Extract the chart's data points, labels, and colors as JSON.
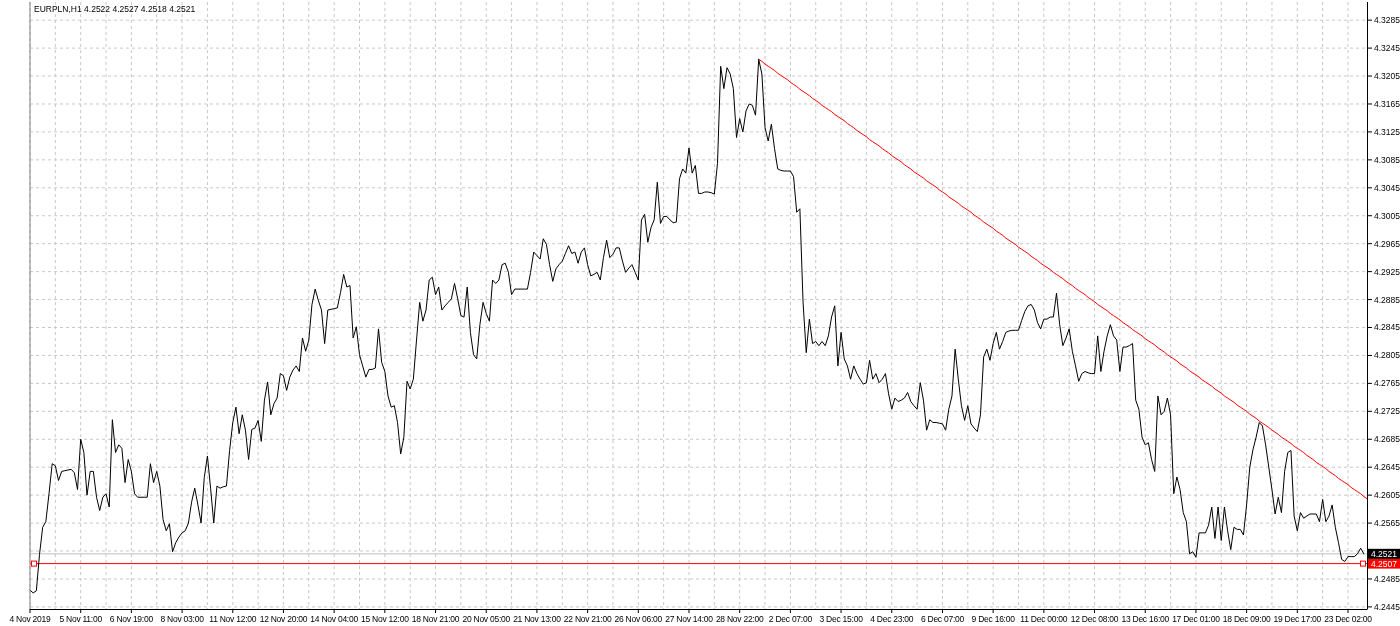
{
  "chart_data": {
    "type": "line",
    "title": "EURPLN,H1 4.2522 4.2527 4.2518 4.2521",
    "categories": [
      "4 Nov 2019",
      null,
      null,
      null,
      null,
      null,
      null,
      null,
      null,
      null,
      null,
      null,
      null,
      null,
      null,
      null,
      "5 Nov 11:00",
      null,
      null,
      null,
      null,
      null,
      null,
      null,
      null,
      null,
      null,
      null,
      null,
      null,
      null,
      null,
      "6 Nov 19:00",
      null,
      null,
      null,
      null,
      null,
      null,
      null,
      null,
      null,
      null,
      null,
      null,
      null,
      null,
      null,
      "8 Nov 03:00",
      null,
      null,
      null,
      null,
      null,
      null,
      null,
      null,
      null,
      null,
      null,
      null,
      null,
      null,
      null,
      "11 Nov 12:00",
      null,
      null,
      null,
      null,
      null,
      null,
      null,
      null,
      null,
      null,
      null,
      null,
      null,
      null,
      null,
      "12 Nov 20:00",
      null,
      null,
      null,
      null,
      null,
      null,
      null,
      null,
      null,
      null,
      null,
      null,
      null,
      null,
      null,
      "14 Nov 04:00",
      null,
      null,
      null,
      null,
      null,
      null,
      null,
      null,
      null,
      null,
      null,
      null,
      null,
      null,
      null,
      "15 Nov 12:00",
      null,
      null,
      null,
      null,
      null,
      null,
      null,
      null,
      null,
      null,
      null,
      null,
      null,
      null,
      null,
      "18 Nov 21:00",
      null,
      null,
      null,
      null,
      null,
      null,
      null,
      null,
      null,
      null,
      null,
      null,
      null,
      null,
      null,
      "20 Nov 05:00",
      null,
      null,
      null,
      null,
      null,
      null,
      null,
      null,
      null,
      null,
      null,
      null,
      null,
      null,
      null,
      "21 Nov 13:00",
      null,
      null,
      null,
      null,
      null,
      null,
      null,
      null,
      null,
      null,
      null,
      null,
      null,
      null,
      null,
      "22 Nov 21:00",
      null,
      null,
      null,
      null,
      null,
      null,
      null,
      null,
      null,
      null,
      null,
      null,
      null,
      null,
      null,
      "26 Nov 06:00",
      null,
      null,
      null,
      null,
      null,
      null,
      null,
      null,
      null,
      null,
      null,
      null,
      null,
      null,
      null,
      "27 Nov 14:00",
      null,
      null,
      null,
      null,
      null,
      null,
      null,
      null,
      null,
      null,
      null,
      null,
      null,
      null,
      null,
      "28 Nov 22:00",
      null,
      null,
      null,
      null,
      null,
      null,
      null,
      null,
      null,
      null,
      null,
      null,
      null,
      null,
      null,
      "2 Dec 07:00",
      null,
      null,
      null,
      null,
      null,
      null,
      null,
      null,
      null,
      null,
      null,
      null,
      null,
      null,
      null,
      "3 Dec 15:00",
      null,
      null,
      null,
      null,
      null,
      null,
      null,
      null,
      null,
      null,
      null,
      null,
      null,
      null,
      null,
      "4 Dec 23:00",
      null,
      null,
      null,
      null,
      null,
      null,
      null,
      null,
      null,
      null,
      null,
      null,
      null,
      null,
      null,
      "6 Dec 07:00",
      null,
      null,
      null,
      null,
      null,
      null,
      null,
      null,
      null,
      null,
      null,
      null,
      null,
      null,
      null,
      "9 Dec 16:00",
      null,
      null,
      null,
      null,
      null,
      null,
      null,
      null,
      null,
      null,
      null,
      null,
      null,
      null,
      null,
      "11 Dec 00:00",
      null,
      null,
      null,
      null,
      null,
      null,
      null,
      null,
      null,
      null,
      null,
      null,
      null,
      null,
      null,
      "12 Dec 08:00",
      null,
      null,
      null,
      null,
      null,
      null,
      null,
      null,
      null,
      null,
      null,
      null,
      null,
      null,
      null,
      "13 Dec 16:00",
      null,
      null,
      null,
      null,
      null,
      null,
      null,
      null,
      null,
      null,
      null,
      null,
      null,
      null,
      null,
      "17 Dec 01:00",
      null,
      null,
      null,
      null,
      null,
      null,
      null,
      null,
      null,
      null,
      null,
      null,
      null,
      null,
      null,
      "18 Dec 09:00",
      null,
      null,
      null,
      null,
      null,
      null,
      null,
      null,
      null,
      null,
      null,
      null,
      null,
      null,
      null,
      "19 Dec 17:00",
      null,
      null,
      null,
      null,
      null,
      null,
      null,
      null,
      null,
      null,
      null,
      null,
      null,
      null,
      null,
      "23 Dec 02:00",
      null,
      null,
      null,
      null,
      null,
      null
    ],
    "ylim": [
      4.2442,
      4.3311
    ],
    "yticks": [
      4.2445,
      4.2485,
      {
        "value": 4.2525,
        "label": null
      },
      4.2565,
      4.2605,
      4.2645,
      4.2685,
      4.2725,
      4.2765,
      4.2805,
      4.2845,
      4.2885,
      4.2925,
      4.2965,
      4.3005,
      4.3045,
      4.3085,
      4.3125,
      4.3165,
      4.3205,
      4.3245,
      4.3285
    ],
    "grid": true,
    "series": [
      {
        "color": "#000000",
        "values": [
          4.2469,
          4.2465,
          4.2468,
          4.252,
          4.2559,
          4.2567,
          4.2607,
          4.265,
          4.2647,
          4.2626,
          4.2639,
          4.264,
          4.2641,
          4.2642,
          4.2637,
          4.2613,
          4.2685,
          4.2666,
          4.2605,
          4.2639,
          4.2639,
          4.2602,
          4.2583,
          4.2602,
          4.2607,
          4.2588,
          4.2713,
          4.2666,
          4.2677,
          4.2672,
          4.2623,
          4.2656,
          4.2639,
          4.2607,
          4.2602,
          4.2602,
          4.2602,
          4.2602,
          4.265,
          4.2623,
          4.2639,
          4.2618,
          4.257,
          4.2554,
          4.2564,
          4.2524,
          4.2537,
          4.2545,
          4.2551,
          4.2554,
          4.2565,
          4.2595,
          4.2615,
          4.2591,
          4.2565,
          4.263,
          4.2661,
          4.2615,
          4.2565,
          4.2618,
          4.2615,
          4.2617,
          4.2618,
          4.2669,
          4.2709,
          4.2731,
          4.2693,
          4.272,
          4.2698,
          4.2656,
          4.2699,
          4.2701,
          4.2712,
          4.2682,
          4.2741,
          4.2767,
          4.272,
          4.2736,
          4.2744,
          4.2779,
          4.2776,
          4.2755,
          4.2774,
          4.2784,
          4.279,
          4.2782,
          4.283,
          4.2811,
          4.2827,
          4.2878,
          4.29,
          4.2884,
          4.287,
          4.2822,
          4.287,
          4.2871,
          4.2872,
          4.2873,
          4.2895,
          4.2921,
          4.2903,
          4.2905,
          4.283,
          4.2846,
          4.2806,
          4.279,
          4.2774,
          4.2785,
          4.2785,
          4.2787,
          4.2843,
          4.2795,
          4.2782,
          4.2747,
          4.2731,
          4.2733,
          4.2709,
          4.2664,
          4.2688,
          4.2768,
          4.2757,
          4.2771,
          4.2827,
          4.2881,
          4.2854,
          4.287,
          4.2913,
          4.2917,
          4.2892,
          4.2903,
          4.287,
          4.2876,
          4.2881,
          4.2886,
          4.2908,
          4.2886,
          4.2862,
          4.286,
          4.2903,
          4.2838,
          4.2806,
          4.28,
          4.2849,
          4.2881,
          4.2865,
          4.2854,
          4.2913,
          4.2908,
          4.2913,
          4.2935,
          4.2937,
          4.2924,
          4.2892,
          4.29,
          4.29,
          4.29,
          4.29,
          4.29,
          4.2924,
          4.2953,
          4.2948,
          4.2943,
          4.2972,
          4.2964,
          4.2935,
          4.2911,
          4.2929,
          4.2935,
          4.294,
          4.2951,
          4.2962,
          4.2951,
          4.2953,
          4.2937,
          4.2953,
          4.2959,
          4.2935,
          4.2919,
          4.2921,
          4.2924,
          4.2913,
          4.2945,
          4.297,
          4.2945,
          4.295,
          4.2959,
          4.2959,
          4.294,
          4.2924,
          4.293,
          4.2935,
          4.2924,
          4.2913,
          4.2999,
          4.3007,
          4.2967,
          4.2988,
          4.2999,
          4.3053,
          4.2994,
          4.3004,
          4.3004,
          4.2999,
          4.2995,
          4.2996,
          4.3058,
          4.3072,
          4.3066,
          4.3102,
          4.3066,
          4.3077,
          4.3037,
          4.3037,
          4.3039,
          4.3039,
          4.3038,
          4.3036,
          4.308,
          4.3219,
          4.3187,
          4.3217,
          4.3208,
          4.3187,
          4.3117,
          4.3144,
          4.3125,
          4.3155,
          4.3165,
          4.3163,
          4.3149,
          4.3229,
          4.3208,
          4.3131,
          4.3112,
          4.3136,
          4.3101,
          4.3072,
          4.307,
          4.3069,
          4.3069,
          4.3069,
          4.3061,
          4.301,
          4.3015,
          4.2881,
          4.2809,
          4.2857,
          4.2822,
          4.2825,
          4.2819,
          4.2825,
          4.2819,
          4.2833,
          4.286,
          4.2876,
          4.279,
          4.2838,
          4.28,
          4.279,
          4.2771,
          4.279,
          4.2779,
          4.2771,
          4.2764,
          4.2766,
          4.2798,
          4.2771,
          4.2779,
          4.2766,
          4.2771,
          4.2779,
          4.275,
          4.2728,
          4.2744,
          4.2739,
          4.2741,
          4.2744,
          4.2752,
          4.2739,
          4.2733,
          4.2728,
          4.2766,
          4.2741,
          4.2698,
          4.2713,
          4.2709,
          4.2709,
          4.2708,
          4.2707,
          4.2698,
          4.2728,
          4.2747,
          4.2814,
          4.2771,
          4.2733,
          4.2712,
          4.2733,
          4.2707,
          4.2701,
          4.2696,
          4.272,
          4.2803,
          4.2814,
          4.2798,
          4.2822,
          4.2838,
          4.2814,
          4.2825,
          4.2838,
          4.284,
          4.2841,
          4.2841,
          4.2841,
          4.2855,
          4.2868,
          4.2876,
          4.2878,
          4.287,
          4.2852,
          4.2843,
          4.2857,
          4.2857,
          4.286,
          4.286,
          4.2894,
          4.2849,
          4.2819,
          4.283,
          4.2843,
          4.2811,
          4.279,
          4.2768,
          4.2779,
          4.2782,
          4.278,
          4.2779,
          4.2779,
          4.2833,
          4.2782,
          4.2811,
          4.2833,
          4.2849,
          4.2833,
          4.2827,
          4.2782,
          4.2817,
          4.2817,
          4.2819,
          4.2822,
          4.2741,
          4.2728,
          4.2688,
          4.2677,
          4.268,
          4.2656,
          4.2639,
          4.2747,
          4.272,
          4.2725,
          4.2744,
          4.272,
          4.2607,
          4.2631,
          4.2613,
          4.258,
          4.2567,
          4.2521,
          4.2524,
          4.2516,
          4.2551,
          4.2551,
          4.2551,
          4.2562,
          4.2588,
          4.2543,
          4.2588,
          4.254,
          4.2588,
          4.2554,
          4.2527,
          4.2559,
          4.2556,
          4.2556,
          4.2548,
          4.2591,
          4.2645,
          4.267,
          4.2688,
          4.2709,
          4.2704,
          4.2677,
          4.2645,
          4.2613,
          4.2578,
          4.2602,
          4.258,
          4.2639,
          4.2666,
          4.2669,
          4.2575,
          4.2554,
          4.258,
          4.2572,
          4.2575,
          4.2578,
          4.2578,
          4.2578,
          4.2567,
          4.2599,
          4.2567,
          4.2575,
          4.2591,
          4.2559,
          4.2537,
          4.2513,
          4.251,
          4.2517,
          4.2517,
          4.2517,
          4.2521,
          4.2529,
          4.2521,
          null
        ]
      },
      {
        "type": "line",
        "color": "#ff0000",
        "values": [
          null,
          null,
          null,
          null,
          null,
          null,
          null,
          null,
          null,
          null,
          null,
          null,
          null,
          null,
          null,
          null,
          null,
          null,
          null,
          null,
          null,
          null,
          null,
          null,
          null,
          null,
          null,
          null,
          null,
          null,
          null,
          null,
          null,
          null,
          null,
          null,
          null,
          null,
          null,
          null,
          null,
          null,
          null,
          null,
          null,
          null,
          null,
          null,
          null,
          null,
          null,
          null,
          null,
          null,
          null,
          null,
          null,
          null,
          null,
          null,
          null,
          null,
          null,
          null,
          null,
          null,
          null,
          null,
          null,
          null,
          null,
          null,
          null,
          null,
          null,
          null,
          null,
          null,
          null,
          null,
          null,
          null,
          null,
          null,
          null,
          null,
          null,
          null,
          null,
          null,
          null,
          null,
          null,
          null,
          null,
          null,
          null,
          null,
          null,
          null,
          null,
          null,
          null,
          null,
          null,
          null,
          null,
          null,
          null,
          null,
          null,
          null,
          null,
          null,
          null,
          null,
          null,
          null,
          null,
          null,
          null,
          null,
          null,
          null,
          null,
          null,
          null,
          null,
          null,
          null,
          null,
          null,
          null,
          null,
          null,
          null,
          null,
          null,
          null,
          null,
          null,
          null,
          null,
          null,
          null,
          null,
          null,
          null,
          null,
          null,
          null,
          null,
          null,
          null,
          null,
          null,
          null,
          null,
          null,
          null,
          null,
          null,
          null,
          null,
          null,
          null,
          null,
          null,
          null,
          null,
          null,
          null,
          null,
          null,
          null,
          null,
          null,
          null,
          null,
          null,
          null,
          null,
          null,
          null,
          null,
          null,
          null,
          null,
          null,
          null,
          null,
          null,
          null,
          null,
          null,
          null,
          null,
          null,
          null,
          null,
          null,
          null,
          null,
          null,
          null,
          null,
          null,
          null,
          null,
          null,
          null,
          null,
          null,
          null,
          null,
          null,
          null,
          null,
          null,
          null,
          null,
          null,
          null,
          null,
          null,
          null,
          null,
          null,
          null,
          null,
          4.3229,
          4.3226,
          4.3222,
          4.3219,
          4.3216,
          4.3213,
          4.3209,
          4.3206,
          4.3203,
          4.32,
          4.3196,
          4.3193,
          4.319,
          4.3186,
          4.3183,
          4.318,
          4.3177,
          4.3173,
          4.317,
          4.3167,
          4.3163,
          4.316,
          4.3157,
          4.3154,
          4.315,
          4.3147,
          4.3144,
          4.3141,
          4.3137,
          4.3134,
          4.3131,
          4.3127,
          4.3124,
          4.3121,
          4.3118,
          4.3114,
          4.3111,
          4.3108,
          4.3105,
          4.3101,
          4.3098,
          4.3095,
          4.3091,
          4.3088,
          4.3085,
          4.3082,
          4.3078,
          4.3075,
          4.3072,
          4.3068,
          4.3065,
          4.3062,
          4.3059,
          4.3055,
          4.3052,
          4.3049,
          4.3046,
          4.3042,
          4.3039,
          4.3036,
          4.3032,
          4.3029,
          4.3026,
          4.3023,
          4.3019,
          4.3016,
          4.3013,
          4.301,
          4.3006,
          4.3003,
          4.3,
          4.2996,
          4.2993,
          4.299,
          4.2987,
          4.2983,
          4.298,
          4.2977,
          4.2973,
          4.297,
          4.2967,
          4.2964,
          4.296,
          4.2957,
          4.2954,
          4.2951,
          4.2947,
          4.2944,
          4.2941,
          4.2937,
          4.2934,
          4.2931,
          4.2928,
          4.2924,
          4.2921,
          4.2918,
          4.2915,
          4.2911,
          4.2908,
          4.2905,
          4.2901,
          4.2898,
          4.2895,
          4.2892,
          4.2888,
          4.2885,
          4.2882,
          4.2878,
          4.2875,
          4.2872,
          4.2869,
          4.2865,
          4.2862,
          4.2859,
          4.2856,
          4.2852,
          4.2849,
          4.2846,
          4.2842,
          4.2839,
          4.2836,
          4.2833,
          4.2829,
          4.2826,
          4.2823,
          4.282,
          4.2816,
          4.2813,
          4.281,
          4.2806,
          4.2803,
          4.28,
          4.2797,
          4.2793,
          4.279,
          4.2787,
          4.2783,
          4.278,
          4.2777,
          4.2774,
          4.277,
          4.2767,
          4.2764,
          4.2761,
          4.2757,
          4.2754,
          4.2751,
          4.2747,
          4.2744,
          4.2741,
          4.2738,
          4.2734,
          4.2731,
          4.2728,
          4.2725,
          4.2721,
          4.2718,
          4.2715,
          4.2711,
          4.2708,
          4.2705,
          4.2702,
          4.2698,
          4.2695,
          4.2692,
          4.2688,
          4.2685,
          4.2682,
          4.2679,
          4.2675,
          4.2672,
          4.2669,
          4.2666,
          4.2662,
          4.2659,
          4.2656,
          4.2652,
          4.2649,
          4.2646,
          4.2643,
          4.2639,
          4.2636,
          4.2633,
          4.2629,
          4.2626,
          4.2623,
          4.262,
          4.2616,
          4.2613,
          4.261,
          4.2607,
          4.2603,
          4.26
        ]
      }
    ],
    "ref_lines": [
      {
        "axis": "y",
        "value": 4.2521,
        "color": "#c0c0c0"
      },
      {
        "axis": "y",
        "value": 4.2507,
        "label": "4.2507",
        "color": "#ff0000"
      }
    ],
    "annotations": [
      {
        "text": "4.2521",
        "y": 4.2521
      }
    ]
  }
}
